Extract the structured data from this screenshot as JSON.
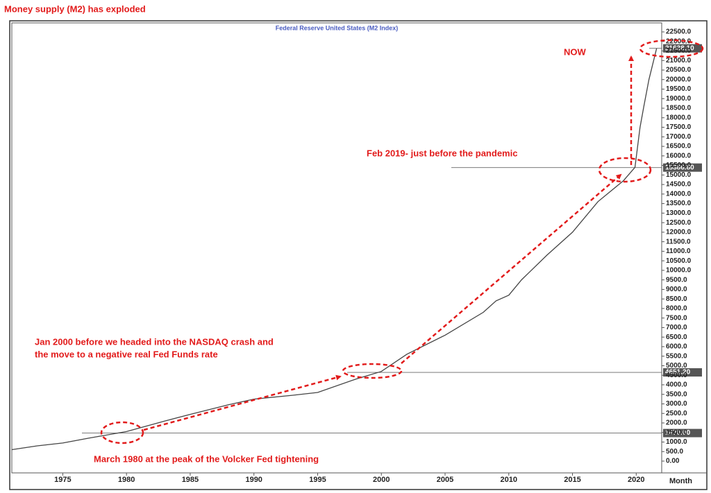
{
  "chart_data": {
    "type": "line",
    "title": "Money supply (M2) has exploded",
    "subtitle": "Federal Reserve United States (M2 Index)",
    "x_axis_label": "Month",
    "color": "#444444",
    "x": [
      1971,
      1973,
      1975,
      1977,
      1980,
      1983,
      1985,
      1988,
      1990,
      1993,
      1995,
      1998,
      2000,
      2002,
      2005,
      2008,
      2009,
      2010,
      2011,
      2013,
      2015,
      2017,
      2019,
      2019.9,
      2020.3,
      2020.6,
      2021,
      2021.6
    ],
    "values": [
      600,
      800,
      950,
      1200,
      1550,
      2100,
      2450,
      2950,
      3250,
      3450,
      3600,
      4300,
      4700,
      5600,
      6600,
      7800,
      8400,
      8700,
      9500,
      10800,
      12000,
      13600,
      14700,
      15400,
      17500,
      18600,
      20000,
      21638
    ],
    "xlim": [
      1971,
      2022
    ],
    "ylim": [
      0,
      22500
    ],
    "xticks": [
      1975,
      1980,
      1985,
      1990,
      1995,
      2000,
      2005,
      2010,
      2015,
      2020
    ],
    "yticks": [
      {
        "value": 0,
        "label": "0.00"
      },
      {
        "value": 500,
        "label": "500.0"
      },
      {
        "value": 1000,
        "label": "1000.0"
      },
      {
        "value": 1500,
        "label": "1500.0"
      },
      {
        "value": 2000,
        "label": "2000.0"
      },
      {
        "value": 2500,
        "label": "2500.0"
      },
      {
        "value": 3000,
        "label": "3000.0"
      },
      {
        "value": 3500,
        "label": "3500.0"
      },
      {
        "value": 4000,
        "label": "4000.0"
      },
      {
        "value": 4500,
        "label": "4500.0"
      },
      {
        "value": 5000,
        "label": "5000.0"
      },
      {
        "value": 5500,
        "label": "5500.0"
      },
      {
        "value": 6000,
        "label": "6000.0"
      },
      {
        "value": 6500,
        "label": "6500.0"
      },
      {
        "value": 7000,
        "label": "7000.0"
      },
      {
        "value": 7500,
        "label": "7500.0"
      },
      {
        "value": 8000,
        "label": "8000.0"
      },
      {
        "value": 8500,
        "label": "8500.0"
      },
      {
        "value": 9000,
        "label": "9000.0"
      },
      {
        "value": 9500,
        "label": "9500.0"
      },
      {
        "value": 10000,
        "label": "10000.0"
      },
      {
        "value": 10500,
        "label": "10500.0"
      },
      {
        "value": 11000,
        "label": "11000.0"
      },
      {
        "value": 11500,
        "label": "11500.0"
      },
      {
        "value": 12000,
        "label": "12000.0"
      },
      {
        "value": 12500,
        "label": "12500.0"
      },
      {
        "value": 13000,
        "label": "13000.0"
      },
      {
        "value": 13500,
        "label": "13500.0"
      },
      {
        "value": 14000,
        "label": "14000.0"
      },
      {
        "value": 14500,
        "label": "14500.0"
      },
      {
        "value": 15000,
        "label": "15000.0"
      },
      {
        "value": 15500,
        "label": "15500.0"
      },
      {
        "value": 16000,
        "label": "16000.0"
      },
      {
        "value": 16500,
        "label": "16500.0"
      },
      {
        "value": 17000,
        "label": "17000.0"
      },
      {
        "value": 17500,
        "label": "17500.0"
      },
      {
        "value": 18000,
        "label": "18000.0"
      },
      {
        "value": 18500,
        "label": "18500.0"
      },
      {
        "value": 19000,
        "label": "19000.0"
      },
      {
        "value": 19500,
        "label": "19500.0"
      },
      {
        "value": 20000,
        "label": "20000.0"
      },
      {
        "value": 20500,
        "label": "20500.0"
      },
      {
        "value": 21000,
        "label": "21000.0"
      },
      {
        "value": 21500,
        "label": "21500.0"
      },
      {
        "value": 22000,
        "label": "22000.0"
      },
      {
        "value": 22500,
        "label": "22500.0"
      }
    ],
    "reference_lines": [
      {
        "value": 1470,
        "label": "1470.00"
      },
      {
        "value": 4651.2,
        "label": "4651.20"
      },
      {
        "value": 15386.8,
        "label": "15386.80"
      },
      {
        "value": 21638.1,
        "label": "21638.10"
      }
    ],
    "annotations": [
      "NOW",
      "Feb 2019- just before the pandemic",
      "Jan 2000 before we headed into the NASDAQ crash and",
      "the move to a negative real Fed Funds rate",
      "March 1980 at the peak of the Volcker Fed tightening"
    ]
  }
}
